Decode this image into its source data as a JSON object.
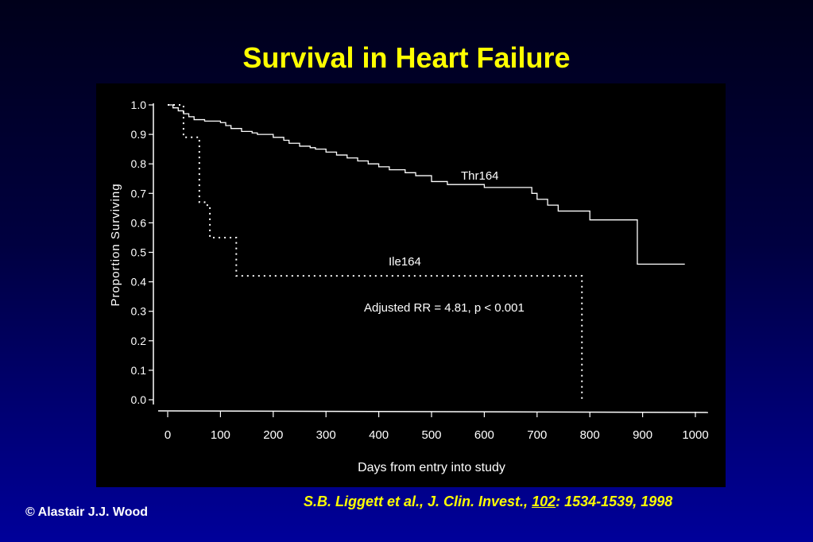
{
  "slide": {
    "title": "Survival in Heart Failure",
    "citation": {
      "authors": "S.B. Liggett et al., J. Clin. Invest.,",
      "volume": "102",
      "pages": ": 1534-1539, 1998"
    },
    "copyright": "© Alastair J.J. Wood"
  },
  "colors": {
    "title": "#ffff00",
    "citation": "#ffff00",
    "copyright": "#ffffff",
    "chart_background": "#000000",
    "chart_ink": "#ffffff"
  },
  "chart_data": {
    "type": "line",
    "step": true,
    "xlabel": "Days from entry into study",
    "ylabel": "Proportion Surviving",
    "xlim": [
      0,
      1000
    ],
    "ylim": [
      0,
      1.0
    ],
    "x_ticks": [
      0,
      100,
      200,
      300,
      400,
      500,
      600,
      700,
      800,
      900,
      1000
    ],
    "x_tick_labels": [
      "0",
      "100",
      "200",
      "300",
      "400",
      "500",
      "600",
      "700",
      "800",
      "900",
      "1000"
    ],
    "y_ticks": [
      0.0,
      0.1,
      0.2,
      0.3,
      0.4,
      0.5,
      0.6,
      0.7,
      0.8,
      0.9,
      1.0
    ],
    "y_tick_labels": [
      "0.0",
      "0.1",
      "0.2",
      "0.3",
      "0.4",
      "0.5",
      "0.6",
      "0.7",
      "0.8",
      "0.9",
      "1.0"
    ],
    "grid": false,
    "series": [
      {
        "name": "Thr164",
        "style": "solid",
        "x": [
          0,
          10,
          20,
          30,
          40,
          50,
          70,
          100,
          110,
          120,
          140,
          160,
          170,
          200,
          220,
          230,
          250,
          270,
          280,
          300,
          320,
          340,
          360,
          380,
          400,
          420,
          450,
          470,
          500,
          530,
          600,
          690,
          700,
          720,
          740,
          800,
          890,
          980
        ],
        "y": [
          1.0,
          0.99,
          0.98,
          0.97,
          0.96,
          0.95,
          0.945,
          0.94,
          0.93,
          0.92,
          0.91,
          0.905,
          0.9,
          0.89,
          0.88,
          0.87,
          0.86,
          0.855,
          0.85,
          0.84,
          0.83,
          0.82,
          0.81,
          0.8,
          0.79,
          0.78,
          0.77,
          0.76,
          0.74,
          0.73,
          0.72,
          0.7,
          0.68,
          0.66,
          0.64,
          0.61,
          0.46,
          0.46
        ]
      },
      {
        "name": "Ile164",
        "style": "dotted",
        "x": [
          0,
          30,
          60,
          70,
          80,
          130,
          785,
          785
        ],
        "y": [
          1.0,
          0.89,
          0.67,
          0.66,
          0.55,
          0.42,
          0.42,
          0.0
        ]
      }
    ],
    "annotation": "Adjusted RR = 4.81, p < 0.001"
  }
}
